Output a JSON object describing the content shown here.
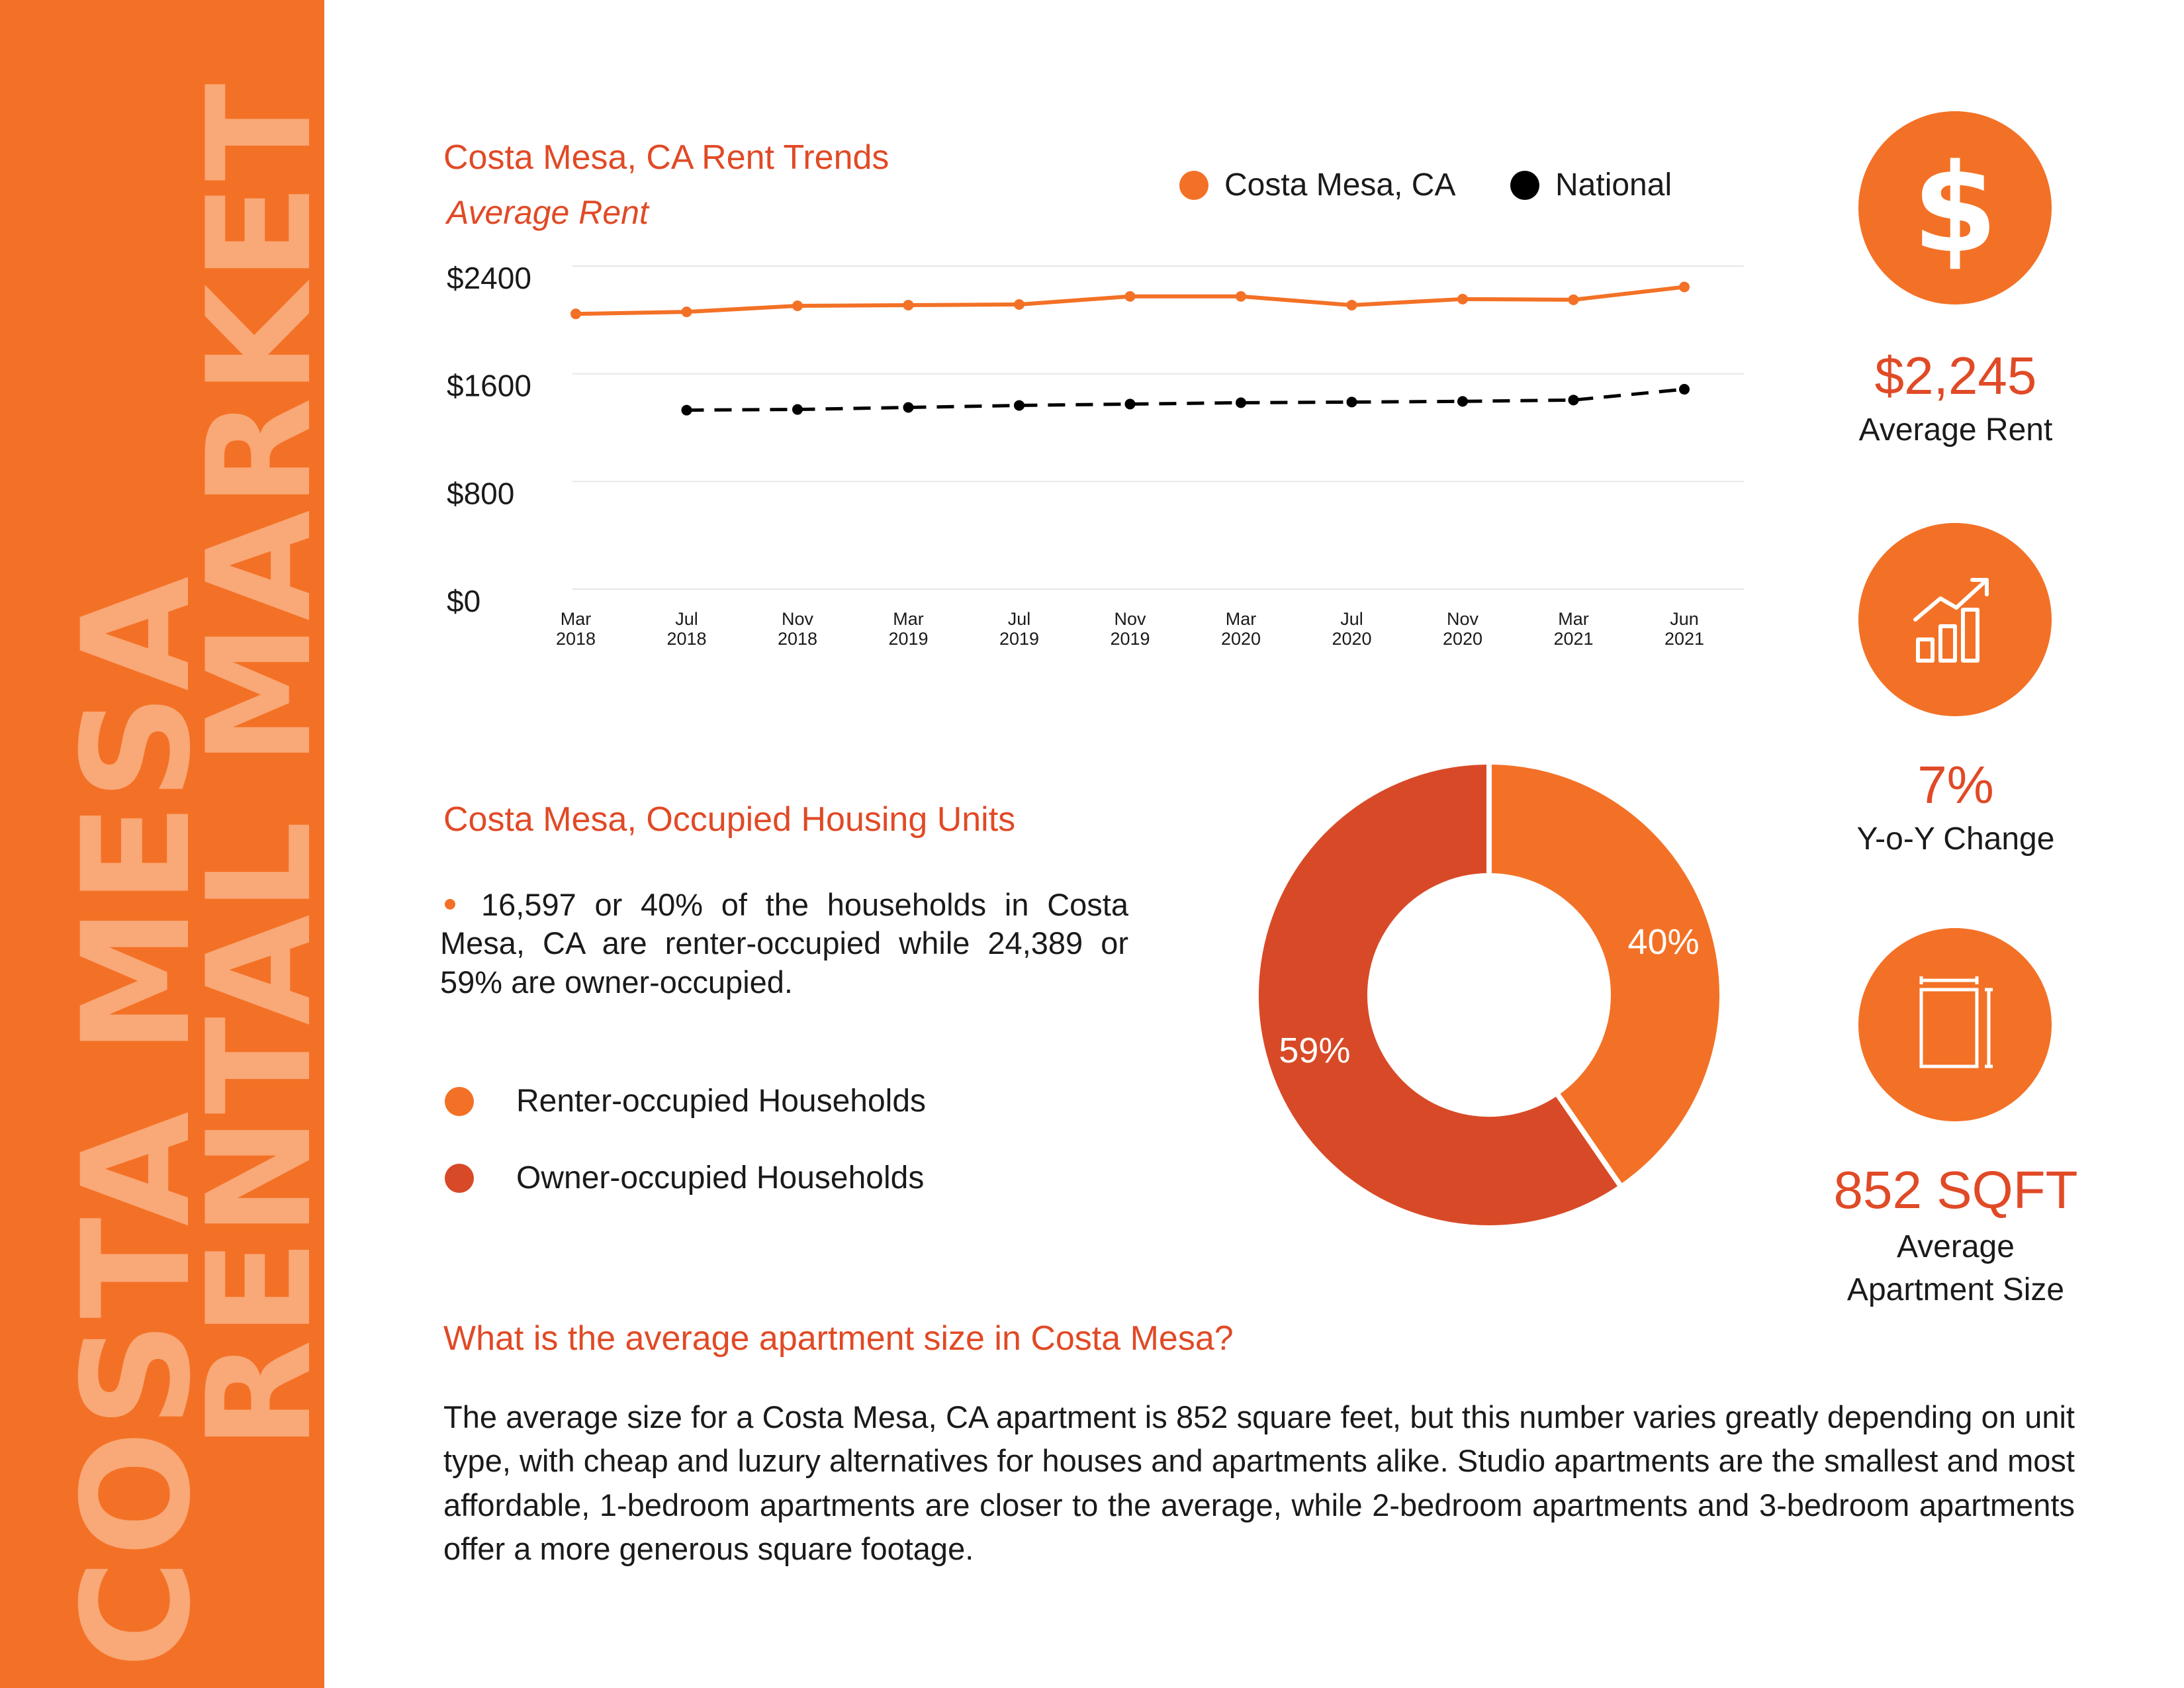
{
  "sidebar": {
    "line1": "COSTA MESA",
    "line2": "RENTAL MARKET"
  },
  "rent_trends": {
    "title": "Costa Mesa, CA Rent Trends",
    "subtitle": "Average Rent"
  },
  "legend": {
    "series1": "Costa Mesa, CA",
    "series2": "National"
  },
  "housing": {
    "title": "Costa Mesa, Occupied Housing Units",
    "bullet": "16,597 or 40% of the households in Costa Mesa, CA are renter-occupied while 24,389 or 59% are owner-occupied.",
    "legend_renter": "Renter-occupied Households",
    "legend_owner": "Owner-occupied Households"
  },
  "stats": {
    "rent_value": "$2,245",
    "rent_label": "Average Rent",
    "yoy_value": "7%",
    "yoy_label": "Y-o-Y Change",
    "size_value": "852 SQFT",
    "size_label_1": "Average",
    "size_label_2": "Apartment Size",
    "icon_dollar": "dollar-icon",
    "icon_growth": "growth-chart-icon",
    "icon_size": "apartment-size-icon"
  },
  "faq": {
    "question": "What is the average apartment size in Costa Mesa?",
    "answer": "The average size for a Costa Mesa, CA apartment is 852 square feet, but this number varies greatly depending on unit type, with cheap and luzury alternatives for houses and apartments alike. Studio apartments are the smallest and most affordable, 1-bedroom apartments are closer to the average, while 2-bedroom apartments and 3-bedroom apartments offer a more generous square footage."
  },
  "colors": {
    "orange": "#F37126",
    "red": "#D84A27",
    "title_red": "#E04A26",
    "black": "#000000",
    "sidebar_text": "#F9A877",
    "grid": "#E6E6E6"
  },
  "chart_data": [
    {
      "type": "line",
      "categories": [
        "Mar 2018",
        "Jul 2018",
        "Nov 2018",
        "Mar 2019",
        "Jul 2019",
        "Nov 2019",
        "Mar 2020",
        "Jul 2020",
        "Nov 2020",
        "Mar 2021",
        "Jun 2021"
      ],
      "series": [
        {
          "name": "Costa Mesa, CA",
          "values": [
            2045,
            2060,
            2105,
            2110,
            2115,
            2175,
            2175,
            2110,
            2155,
            2150,
            2245
          ],
          "color": "#F37126",
          "style": "solid"
        },
        {
          "name": "National",
          "values": [
            null,
            1330,
            1335,
            1350,
            1365,
            1375,
            1385,
            1390,
            1395,
            1405,
            1485
          ],
          "color": "#000000",
          "style": "dashed"
        }
      ],
      "yticks": [
        "$0",
        "$800",
        "$1600",
        "$2400"
      ],
      "ylim": [
        0,
        2400
      ],
      "grid": true,
      "legend": "top-right",
      "title": "Costa Mesa, CA Rent Trends",
      "subtitle": "Average Rent"
    },
    {
      "type": "pie",
      "categories": [
        "Renter-occupied Households",
        "Owner-occupied Households"
      ],
      "values": [
        40,
        59
      ],
      "labels": [
        "40%",
        "59%"
      ],
      "colors": [
        "#F37126",
        "#D84A27"
      ],
      "donut": true
    }
  ]
}
